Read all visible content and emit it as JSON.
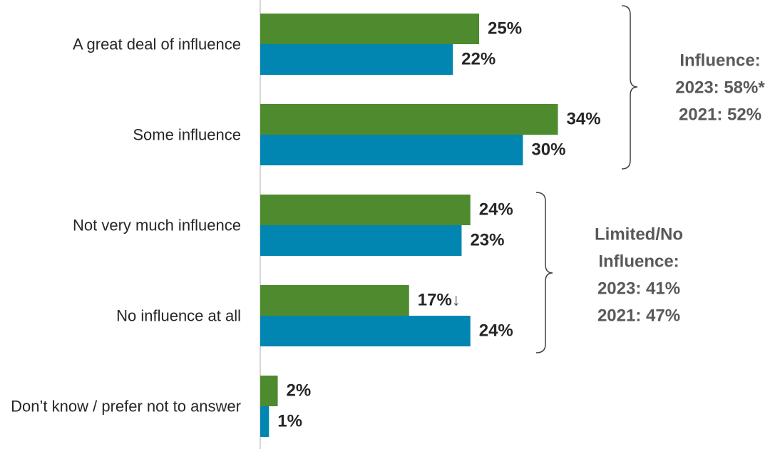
{
  "chart_data": {
    "type": "bar",
    "orientation": "horizontal",
    "categories": [
      "A great deal of influence",
      "Some influence",
      "Not very much influence",
      "No influence at all",
      "Don’t know / prefer not to answer"
    ],
    "series": [
      {
        "color": "#4e8a2e",
        "values": [
          25,
          34,
          24,
          17,
          2
        ],
        "value_labels": [
          "25%",
          "34%",
          "24%",
          "17%",
          "2%"
        ]
      },
      {
        "color": "#0086b0",
        "values": [
          22,
          30,
          23,
          24,
          1
        ],
        "value_labels": [
          "22%",
          "30%",
          "23%",
          "24%",
          "1%"
        ]
      }
    ],
    "xlim": [
      0,
      50
    ],
    "annotations": [
      {
        "lines": [
          "Influence:",
          "2023: 58%*",
          "2021: 52%"
        ]
      },
      {
        "lines": [
          "Limited/No",
          "Influence:",
          "2023: 41%",
          "2021: 47%"
        ]
      },
      {
        "text": "↓"
      }
    ]
  }
}
